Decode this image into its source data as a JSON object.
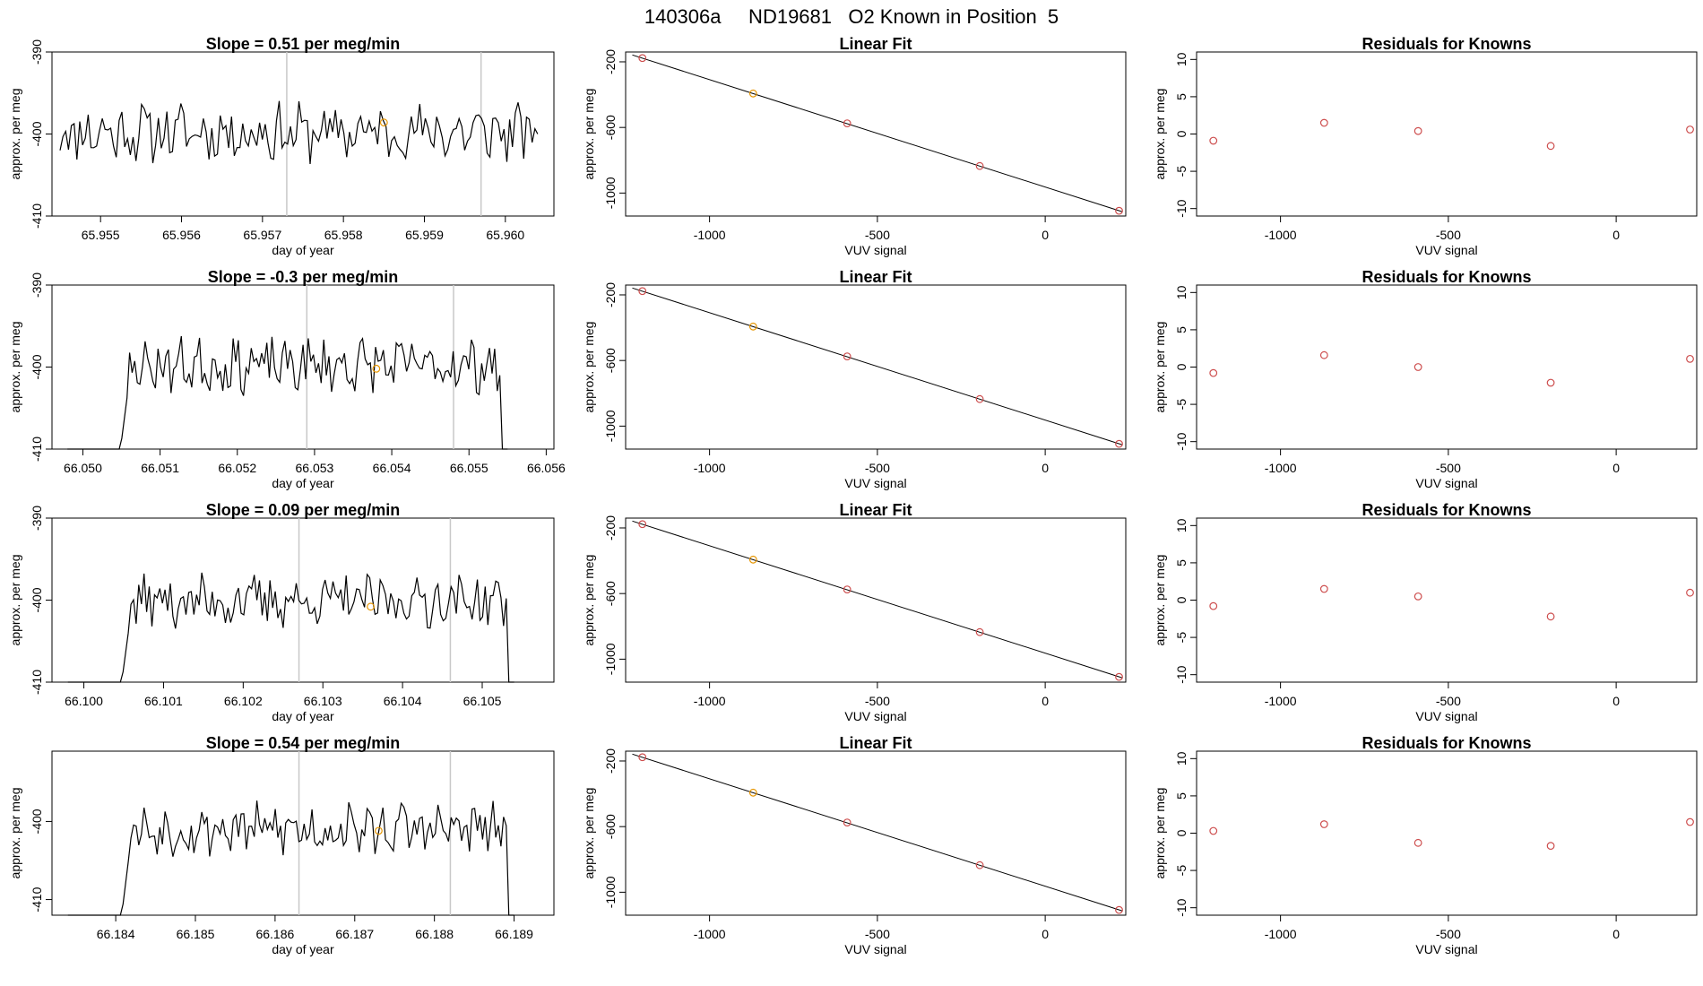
{
  "suptitle": "140306a     ND19681   O2 Known in Position  5",
  "colors": {
    "line": "#000000",
    "point_red": "#cd4d4d",
    "point_orange": "#e69500",
    "vline": "#c8c8c8",
    "frame": "#000000"
  },
  "chart_data": [
    {
      "row": 0,
      "series_plot": {
        "type": "line",
        "title": "Slope =  0.51  per meg/min",
        "xlabel": "day of year",
        "ylabel": "approx. per meg",
        "xlim": [
          65.9544,
          65.9606
        ],
        "ylim": [
          -410,
          -390
        ],
        "xticks": [
          65.955,
          65.956,
          65.957,
          65.958,
          65.959,
          65.96
        ],
        "xtick_labels": [
          "65.955",
          "65.956",
          "65.957",
          "65.958",
          "65.959",
          "65.960"
        ],
        "yticks": [
          -410,
          -400,
          -390
        ],
        "ytick_labels": [
          "-410",
          "-400",
          "-390"
        ],
        "x_start": 65.9545,
        "x_end": 65.9604,
        "seed": 11,
        "start_value": -402,
        "end_value": -400,
        "mean": -399.8,
        "amplitude": 3.0,
        "trim_start": 0,
        "trim_end": 0,
        "vlines": [
          65.9573,
          65.9597
        ],
        "marker": {
          "x": 65.9585,
          "y": -398.6
        }
      },
      "fit_plot": {
        "type": "scatter+line",
        "title": "Linear Fit",
        "xlabel": "VUV signal",
        "ylabel": "approx. per meg",
        "xlim": [
          -1250,
          240
        ],
        "ylim": [
          -1140,
          -140
        ],
        "xticks": [
          -1000,
          -500,
          0
        ],
        "xtick_labels": [
          "-1000",
          "-500",
          "0"
        ],
        "yticks": [
          -1000,
          -600,
          -200
        ],
        "ytick_labels": [
          "-1000",
          "-600",
          "-200"
        ],
        "line": {
          "x": [
            -1230,
            230
          ],
          "y": [
            -158,
            -1114
          ]
        },
        "points": [
          {
            "x": -1200,
            "y": -177,
            "highlight": false
          },
          {
            "x": -870,
            "y": -393,
            "highlight": true
          },
          {
            "x": -590,
            "y": -575,
            "highlight": false
          },
          {
            "x": -195,
            "y": -835,
            "highlight": false
          },
          {
            "x": 220,
            "y": -1108,
            "highlight": false
          }
        ]
      },
      "resid_plot": {
        "type": "scatter",
        "title": "Residuals for Knowns",
        "xlabel": "VUV signal",
        "ylabel": "approx. per meg",
        "xlim": [
          -1250,
          240
        ],
        "ylim": [
          -11,
          11
        ],
        "xticks": [
          -1000,
          -500,
          0
        ],
        "xtick_labels": [
          "-1000",
          "-500",
          "0"
        ],
        "yticks": [
          -10,
          -5,
          0,
          5,
          10
        ],
        "ytick_labels": [
          "-10",
          "-5",
          "0",
          "5",
          "10"
        ],
        "points": [
          {
            "x": -1200,
            "y": -0.9
          },
          {
            "x": -870,
            "y": 1.5
          },
          {
            "x": -590,
            "y": 0.4
          },
          {
            "x": -195,
            "y": -1.6
          },
          {
            "x": 220,
            "y": 0.6
          }
        ]
      }
    },
    {
      "row": 1,
      "series_plot": {
        "type": "line",
        "title": "Slope =  -0.3  per meg/min",
        "xlabel": "day of year",
        "ylabel": "approx. per meg",
        "xlim": [
          66.0496,
          66.0561
        ],
        "ylim": [
          -410,
          -390
        ],
        "xticks": [
          66.05,
          66.051,
          66.052,
          66.053,
          66.054,
          66.055,
          66.056
        ],
        "xtick_labels": [
          "66.050",
          "66.051",
          "66.052",
          "66.053",
          "66.054",
          "66.055",
          "66.056"
        ],
        "yticks": [
          -410,
          -400,
          -390
        ],
        "ytick_labels": [
          "-410",
          "-400",
          "-390"
        ],
        "x_start": 66.0498,
        "x_end": 66.0555,
        "seed": 23,
        "start_value": -410,
        "end_value": -410,
        "mean": -399.8,
        "amplitude": 2.8,
        "trim_start": 0.14,
        "trim_end": 0.012,
        "vlines": [
          66.0529,
          66.0548
        ],
        "marker": {
          "x": 66.0538,
          "y": -400.2
        }
      },
      "fit_plot": {
        "type": "scatter+line",
        "title": "Linear Fit",
        "xlabel": "VUV signal",
        "ylabel": "approx. per meg",
        "xlim": [
          -1250,
          240
        ],
        "ylim": [
          -1140,
          -140
        ],
        "xticks": [
          -1000,
          -500,
          0
        ],
        "xtick_labels": [
          "-1000",
          "-500",
          "0"
        ],
        "yticks": [
          -1000,
          -600,
          -200
        ],
        "ytick_labels": [
          "-1000",
          "-600",
          "-200"
        ],
        "line": {
          "x": [
            -1230,
            230
          ],
          "y": [
            -158,
            -1114
          ]
        },
        "points": [
          {
            "x": -1200,
            "y": -177,
            "highlight": false
          },
          {
            "x": -870,
            "y": -393,
            "highlight": true
          },
          {
            "x": -590,
            "y": -575,
            "highlight": false
          },
          {
            "x": -195,
            "y": -835,
            "highlight": false
          },
          {
            "x": 220,
            "y": -1108,
            "highlight": false
          }
        ]
      },
      "resid_plot": {
        "type": "scatter",
        "title": "Residuals for Knowns",
        "xlabel": "VUV signal",
        "ylabel": "approx. per meg",
        "xlim": [
          -1250,
          240
        ],
        "ylim": [
          -11,
          11
        ],
        "xticks": [
          -1000,
          -500,
          0
        ],
        "xtick_labels": [
          "-1000",
          "-500",
          "0"
        ],
        "yticks": [
          -10,
          -5,
          0,
          5,
          10
        ],
        "ytick_labels": [
          "-10",
          "-5",
          "0",
          "5",
          "10"
        ],
        "points": [
          {
            "x": -1200,
            "y": -0.8
          },
          {
            "x": -870,
            "y": 1.6
          },
          {
            "x": -590,
            "y": 0.0
          },
          {
            "x": -195,
            "y": -2.1
          },
          {
            "x": 220,
            "y": 1.1
          }
        ]
      }
    },
    {
      "row": 2,
      "series_plot": {
        "type": "line",
        "title": "Slope =  0.09  per meg/min",
        "xlabel": "day of year",
        "ylabel": "approx. per meg",
        "xlim": [
          66.0996,
          66.1059
        ],
        "ylim": [
          -410,
          -390
        ],
        "xticks": [
          66.1,
          66.101,
          66.102,
          66.103,
          66.104,
          66.105
        ],
        "xtick_labels": [
          "66.100",
          "66.101",
          "66.102",
          "66.103",
          "66.104",
          "66.105"
        ],
        "yticks": [
          -410,
          -400,
          -390
        ],
        "ytick_labels": [
          "-410",
          "-400",
          "-390"
        ],
        "x_start": 66.0998,
        "x_end": 66.1054,
        "seed": 37,
        "start_value": -410,
        "end_value": -410,
        "mean": -400.1,
        "amplitude": 2.7,
        "trim_start": 0.14,
        "trim_end": 0.012,
        "vlines": [
          66.1027,
          66.1046
        ],
        "marker": {
          "x": 66.1036,
          "y": -400.8
        }
      },
      "fit_plot": {
        "type": "scatter+line",
        "title": "Linear Fit",
        "xlabel": "VUV signal",
        "ylabel": "approx. per meg",
        "xlim": [
          -1250,
          240
        ],
        "ylim": [
          -1140,
          -140
        ],
        "xticks": [
          -1000,
          -500,
          0
        ],
        "xtick_labels": [
          "-1000",
          "-500",
          "0"
        ],
        "yticks": [
          -1000,
          -600,
          -200
        ],
        "ytick_labels": [
          "-1000",
          "-600",
          "-200"
        ],
        "line": {
          "x": [
            -1230,
            230
          ],
          "y": [
            -158,
            -1114
          ]
        },
        "points": [
          {
            "x": -1200,
            "y": -177,
            "highlight": false
          },
          {
            "x": -870,
            "y": -393,
            "highlight": true
          },
          {
            "x": -590,
            "y": -575,
            "highlight": false
          },
          {
            "x": -195,
            "y": -835,
            "highlight": false
          },
          {
            "x": 220,
            "y": -1108,
            "highlight": false
          }
        ]
      },
      "resid_plot": {
        "type": "scatter",
        "title": "Residuals for Knowns",
        "xlabel": "VUV signal",
        "ylabel": "approx. per meg",
        "xlim": [
          -1250,
          240
        ],
        "ylim": [
          -11,
          11
        ],
        "xticks": [
          -1000,
          -500,
          0
        ],
        "xtick_labels": [
          "-1000",
          "-500",
          "0"
        ],
        "yticks": [
          -10,
          -5,
          0,
          5,
          10
        ],
        "ytick_labels": [
          "-10",
          "-5",
          "0",
          "5",
          "10"
        ],
        "points": [
          {
            "x": -1200,
            "y": -0.8
          },
          {
            "x": -870,
            "y": 1.5
          },
          {
            "x": -590,
            "y": 0.5
          },
          {
            "x": -195,
            "y": -2.2
          },
          {
            "x": 220,
            "y": 1.0
          }
        ]
      }
    },
    {
      "row": 3,
      "series_plot": {
        "type": "line",
        "title": "Slope =  0.54  per meg/min",
        "xlabel": "day of year",
        "ylabel": "approx. per meg",
        "xlim": [
          66.1832,
          66.1895
        ],
        "ylim": [
          -412,
          -391
        ],
        "xticks": [
          66.184,
          66.185,
          66.186,
          66.187,
          66.188,
          66.189
        ],
        "xtick_labels": [
          "66.184",
          "66.185",
          "66.186",
          "66.187",
          "66.188",
          "66.189"
        ],
        "yticks": [
          -410,
          -400
        ],
        "ytick_labels": [
          "-410",
          "-400"
        ],
        "x_start": 66.1834,
        "x_end": 66.189,
        "seed": 53,
        "start_value": -412,
        "end_value": -412,
        "mean": -401.0,
        "amplitude": 2.8,
        "trim_start": 0.14,
        "trim_end": 0.012,
        "vlines": [
          66.1863,
          66.1882
        ],
        "marker": {
          "x": 66.1873,
          "y": -401.2
        }
      },
      "fit_plot": {
        "type": "scatter+line",
        "title": "Linear Fit",
        "xlabel": "VUV signal",
        "ylabel": "approx. per meg",
        "xlim": [
          -1250,
          240
        ],
        "ylim": [
          -1140,
          -140
        ],
        "xticks": [
          -1000,
          -500,
          0
        ],
        "xtick_labels": [
          "-1000",
          "-500",
          "0"
        ],
        "yticks": [
          -1000,
          -600,
          -200
        ],
        "ytick_labels": [
          "-1000",
          "-600",
          "-200"
        ],
        "line": {
          "x": [
            -1230,
            230
          ],
          "y": [
            -158,
            -1114
          ]
        },
        "points": [
          {
            "x": -1200,
            "y": -177,
            "highlight": false
          },
          {
            "x": -870,
            "y": -393,
            "highlight": true
          },
          {
            "x": -590,
            "y": -575,
            "highlight": false
          },
          {
            "x": -195,
            "y": -835,
            "highlight": false
          },
          {
            "x": 220,
            "y": -1108,
            "highlight": false
          }
        ]
      },
      "resid_plot": {
        "type": "scatter",
        "title": "Residuals for Knowns",
        "xlabel": "VUV signal",
        "ylabel": "approx. per meg",
        "xlim": [
          -1250,
          240
        ],
        "ylim": [
          -11,
          11
        ],
        "xticks": [
          -1000,
          -500,
          0
        ],
        "xtick_labels": [
          "-1000",
          "-500",
          "0"
        ],
        "yticks": [
          -10,
          -5,
          0,
          5,
          10
        ],
        "ytick_labels": [
          "-10",
          "-5",
          "0",
          "5",
          "10"
        ],
        "points": [
          {
            "x": -1200,
            "y": 0.3
          },
          {
            "x": -870,
            "y": 1.2
          },
          {
            "x": -590,
            "y": -1.3
          },
          {
            "x": -195,
            "y": -1.7
          },
          {
            "x": 220,
            "y": 1.5
          }
        ]
      }
    }
  ]
}
